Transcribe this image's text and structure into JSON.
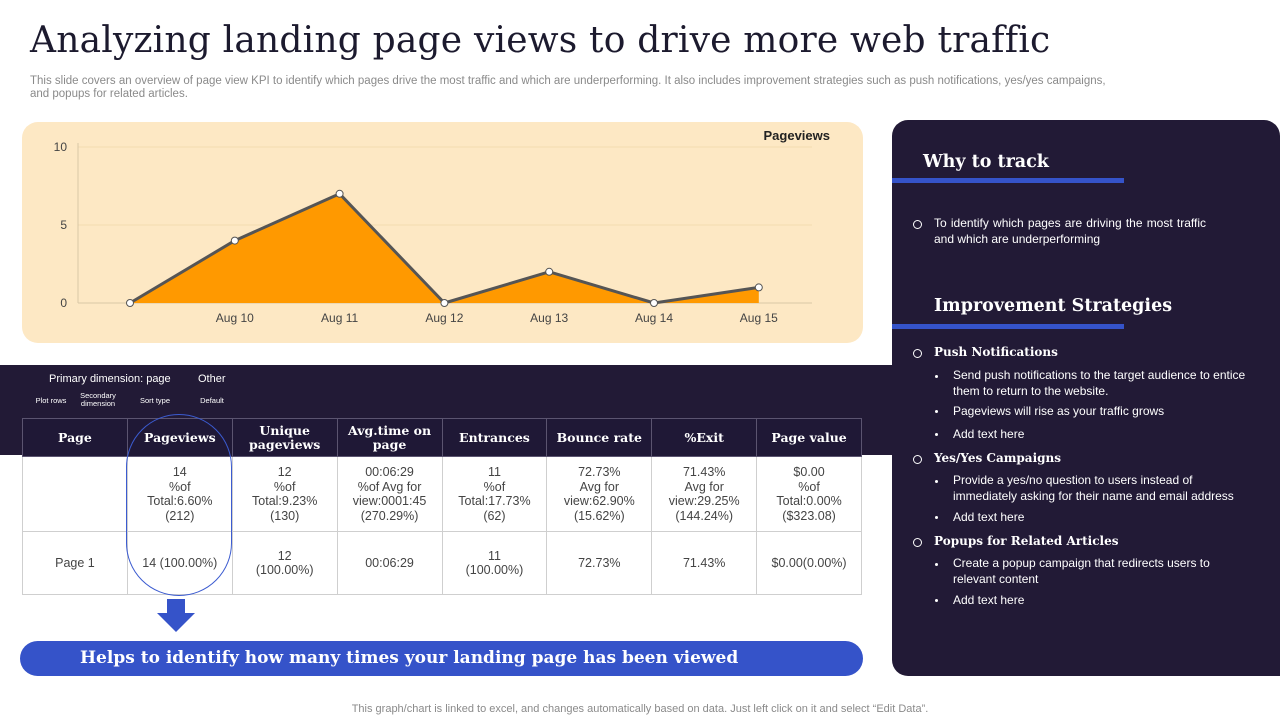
{
  "header": {
    "title": "Analyzing landing page views to drive more web traffic",
    "subtitle": "This slide covers an overview of page view KPI to identify which pages drive the most traffic and which are underperforming. It also includes improvement strategies such as push notifications, yes/yes campaigns, and popups for related articles."
  },
  "chart_data": {
    "type": "area",
    "title": "Pageviews",
    "categories": [
      "",
      "Aug 10",
      "Aug 11",
      "Aug 12",
      "Aug 13",
      "Aug 14",
      "Aug 15"
    ],
    "values": [
      0,
      4,
      7,
      0,
      2,
      0,
      1
    ],
    "ylim": [
      0,
      10
    ],
    "yticks": [
      "0",
      "5",
      "10"
    ],
    "colors": {
      "fill": "#ff9900",
      "line": "#555555",
      "background": "#fde8c4"
    },
    "grid": true,
    "legend": "none"
  },
  "dimension_bar": {
    "primary_label": "Primary dimension: page",
    "other_label": "Other",
    "options": [
      "Plot rows",
      "Secondary dimension",
      "Sort type",
      "Default"
    ]
  },
  "table": {
    "headers": [
      "Page",
      "Pageviews",
      "Unique pageviews",
      "Avg.time on page",
      "Entrances",
      "Bounce rate",
      "%Exit",
      "Page value"
    ],
    "total_row": [
      [],
      [
        "14",
        "%of",
        "Total:6.60%",
        "(212)"
      ],
      [
        "12",
        "%of",
        "Total:9.23%",
        "(130)"
      ],
      [
        "00:06:29",
        "%of Avg for",
        "view:0001:45",
        "(270.29%)"
      ],
      [
        "11",
        "%of",
        "Total:17.73%",
        "(62)"
      ],
      [
        "72.73%",
        "Avg for",
        "view:62.90%",
        "(15.62%)"
      ],
      [
        "71.43%",
        "Avg for",
        "view:29.25%",
        "(144.24%)"
      ],
      [
        "$0.00",
        "%of",
        "Total:0.00%",
        "($323.08)"
      ]
    ],
    "page_row": [
      [
        "Page 1"
      ],
      [
        "14 (100.00%)"
      ],
      [
        "12",
        "(100.00%)"
      ],
      [
        "00:06:29"
      ],
      [
        "11",
        "(100.00%)"
      ],
      [
        "72.73%"
      ],
      [
        "71.43%"
      ],
      [
        "$0.00(0.00%)"
      ]
    ]
  },
  "callout": {
    "text": "Helps to identify how many times your landing page has been viewed"
  },
  "footnote": "This graph/chart is linked to excel, and changes automatically based on data. Just left click on it and select “Edit Data”.",
  "right_panel": {
    "why_heading": "Why to track",
    "why_text": "To identify which pages are driving the most traffic and which are underperforming",
    "improve_heading": "Improvement Strategies",
    "strategies": [
      {
        "title": "Push Notifications",
        "items": [
          "Send push notifications to the target audience to entice them to return to the website.",
          "Pageviews will rise as your traffic grows",
          "Add text here"
        ]
      },
      {
        "title": "Yes/Yes Campaigns",
        "items": [
          "Provide a yes/no question to users instead of immediately asking for their name and email address",
          "Add text here"
        ]
      },
      {
        "title": "Popups for Related Articles",
        "items": [
          "Create a popup campaign that redirects users to relevant content",
          "Add text here"
        ]
      }
    ]
  }
}
